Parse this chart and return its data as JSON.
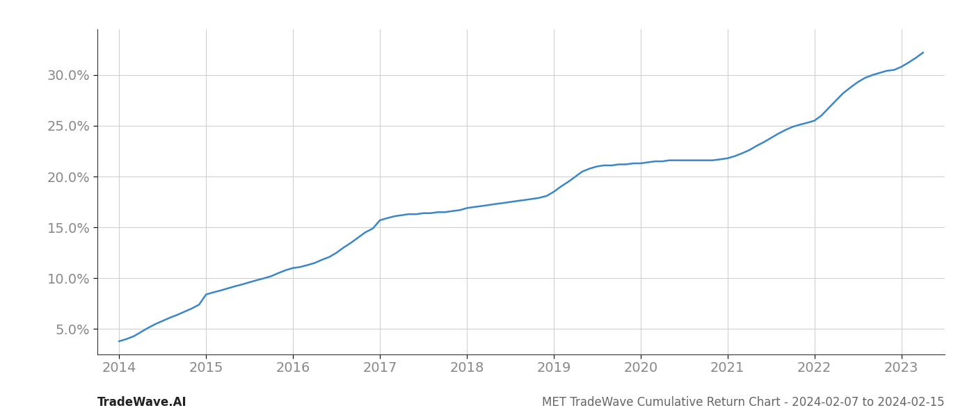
{
  "title": "",
  "footer_left": "TradeWave.AI",
  "footer_right": "MET TradeWave Cumulative Return Chart - 2024-02-07 to 2024-02-15",
  "line_color": "#3a86c8",
  "line_width": 1.8,
  "background_color": "#ffffff",
  "grid_color": "#cccccc",
  "x_values": [
    2014.0,
    2014.08,
    2014.17,
    2014.25,
    2014.33,
    2014.42,
    2014.5,
    2014.58,
    2014.67,
    2014.75,
    2014.83,
    2014.92,
    2015.0,
    2015.08,
    2015.17,
    2015.25,
    2015.33,
    2015.42,
    2015.5,
    2015.58,
    2015.67,
    2015.75,
    2015.83,
    2015.92,
    2016.0,
    2016.08,
    2016.17,
    2016.25,
    2016.33,
    2016.42,
    2016.5,
    2016.58,
    2016.67,
    2016.75,
    2016.83,
    2016.92,
    2017.0,
    2017.08,
    2017.17,
    2017.25,
    2017.33,
    2017.42,
    2017.5,
    2017.58,
    2017.67,
    2017.75,
    2017.83,
    2017.92,
    2018.0,
    2018.08,
    2018.17,
    2018.25,
    2018.33,
    2018.42,
    2018.5,
    2018.58,
    2018.67,
    2018.75,
    2018.83,
    2018.92,
    2019.0,
    2019.08,
    2019.17,
    2019.25,
    2019.33,
    2019.42,
    2019.5,
    2019.58,
    2019.67,
    2019.75,
    2019.83,
    2019.92,
    2020.0,
    2020.08,
    2020.17,
    2020.25,
    2020.33,
    2020.42,
    2020.5,
    2020.58,
    2020.67,
    2020.75,
    2020.83,
    2020.92,
    2021.0,
    2021.08,
    2021.17,
    2021.25,
    2021.33,
    2021.42,
    2021.5,
    2021.58,
    2021.67,
    2021.75,
    2021.83,
    2021.92,
    2022.0,
    2022.08,
    2022.17,
    2022.25,
    2022.33,
    2022.42,
    2022.5,
    2022.58,
    2022.67,
    2022.75,
    2022.83,
    2022.92,
    2023.0,
    2023.08,
    2023.17,
    2023.25
  ],
  "y_values": [
    3.8,
    4.0,
    4.3,
    4.7,
    5.1,
    5.5,
    5.8,
    6.1,
    6.4,
    6.7,
    7.0,
    7.4,
    8.4,
    8.6,
    8.8,
    9.0,
    9.2,
    9.4,
    9.6,
    9.8,
    10.0,
    10.2,
    10.5,
    10.8,
    11.0,
    11.1,
    11.3,
    11.5,
    11.8,
    12.1,
    12.5,
    13.0,
    13.5,
    14.0,
    14.5,
    14.9,
    15.7,
    15.9,
    16.1,
    16.2,
    16.3,
    16.3,
    16.4,
    16.4,
    16.5,
    16.5,
    16.6,
    16.7,
    16.9,
    17.0,
    17.1,
    17.2,
    17.3,
    17.4,
    17.5,
    17.6,
    17.7,
    17.8,
    17.9,
    18.1,
    18.5,
    19.0,
    19.5,
    20.0,
    20.5,
    20.8,
    21.0,
    21.1,
    21.1,
    21.2,
    21.2,
    21.3,
    21.3,
    21.4,
    21.5,
    21.5,
    21.6,
    21.6,
    21.6,
    21.6,
    21.6,
    21.6,
    21.6,
    21.7,
    21.8,
    22.0,
    22.3,
    22.6,
    23.0,
    23.4,
    23.8,
    24.2,
    24.6,
    24.9,
    25.1,
    25.3,
    25.5,
    26.0,
    26.8,
    27.5,
    28.2,
    28.8,
    29.3,
    29.7,
    30.0,
    30.2,
    30.4,
    30.5,
    30.8,
    31.2,
    31.7,
    32.2
  ],
  "xlim": [
    2013.75,
    2023.5
  ],
  "ylim": [
    2.5,
    34.5
  ],
  "yticks": [
    5.0,
    10.0,
    15.0,
    20.0,
    25.0,
    30.0
  ],
  "xticks": [
    2014,
    2015,
    2016,
    2017,
    2018,
    2019,
    2020,
    2021,
    2022,
    2023
  ],
  "tick_label_color": "#888888",
  "tick_label_size": 14,
  "footer_fontsize": 12,
  "footer_left_color": "#222222",
  "footer_right_color": "#666666",
  "spine_color": "#333333"
}
